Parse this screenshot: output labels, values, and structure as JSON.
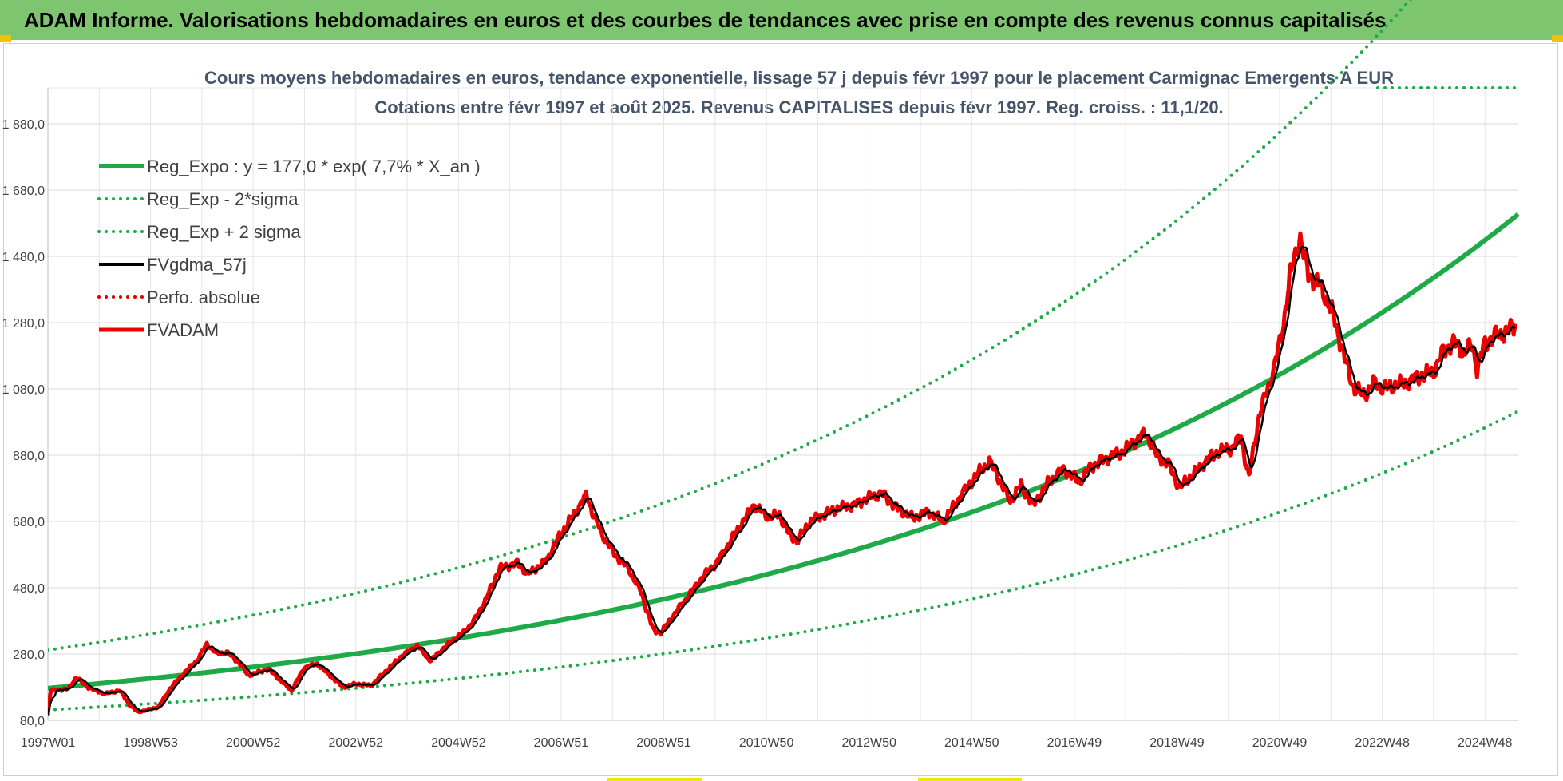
{
  "banner": {
    "title": "ADAM Informe. Valorisations hebdomadaires en euros et des courbes de tendances avec prise en compte des revenus connus capitalisés",
    "color": "#7dc56e"
  },
  "chart_data": {
    "type": "line",
    "title": "Cours moyens hebdomadaires en euros, tendance exponentielle, lissage 57 j depuis févr 1997 pour le placement Carmignac Emergents A EUR",
    "subtitle": "Cotations entre févr 1997 et août 2025. Revenus CAPITALISES depuis févr 1997. Reg. croiss. : 11,1/20.",
    "xlim": [
      1997.0,
      2025.65
    ],
    "ylim": [
      80,
      1960
    ],
    "y_ticks": [
      80,
      280,
      480,
      680,
      880,
      1080,
      1280,
      1480,
      1680,
      1880
    ],
    "y_tick_labels": [
      "80,0",
      "280,0",
      "480,0",
      "680,0",
      "880,0",
      "1 080,0",
      "1 280,0",
      "1 480,0",
      "1 680,0",
      "1 880,0"
    ],
    "x_ticks": [
      {
        "label": "1997W01",
        "x": 1997.0
      },
      {
        "label": "1998W53",
        "x": 1999.0
      },
      {
        "label": "2000W52",
        "x": 2001.0
      },
      {
        "label": "2002W52",
        "x": 2003.0
      },
      {
        "label": "2004W52",
        "x": 2005.0
      },
      {
        "label": "2006W51",
        "x": 2007.0
      },
      {
        "label": "2008W51",
        "x": 2009.0
      },
      {
        "label": "2010W50",
        "x": 2011.0
      },
      {
        "label": "2012W50",
        "x": 2013.0
      },
      {
        "label": "2014W50",
        "x": 2015.0
      },
      {
        "label": "2016W49",
        "x": 2017.0
      },
      {
        "label": "2018W49",
        "x": 2019.0
      },
      {
        "label": "2020W49",
        "x": 2021.0
      },
      {
        "label": "2022W48",
        "x": 2023.0
      },
      {
        "label": "2024W48",
        "x": 2025.0
      }
    ],
    "grid": true,
    "legend_position": "top-left",
    "regression": {
      "a": 177.0,
      "rate": 0.077,
      "sigma_low": 0.63,
      "sigma_high": 1.65
    },
    "series": [
      {
        "name": "Reg_Expo : y = 177,0 * exp( 7,7% *  X_an )",
        "color": "#1faa48",
        "style": "solid",
        "width": 6,
        "kind": "reg"
      },
      {
        "name": "Reg_Exp - 2*sigma",
        "color": "#1faa48",
        "style": "dotted",
        "width": 4,
        "kind": "low"
      },
      {
        "name": "Reg_Exp + 2 sigma",
        "color": "#1faa48",
        "style": "dotted",
        "width": 4,
        "kind": "high"
      },
      {
        "name": "FVgdma_57j",
        "color": "#000000",
        "style": "solid",
        "width": 4,
        "kind": "smooth"
      },
      {
        "name": "Perfo. absolue",
        "color": "#e00000",
        "style": "dotted",
        "width": 3,
        "kind": "perfo"
      },
      {
        "name": "FVADAM",
        "color": "#ee0000",
        "style": "solid",
        "width": 5,
        "kind": "price"
      }
    ],
    "price_points": [
      [
        1997.0,
        95
      ],
      [
        1997.05,
        170
      ],
      [
        1997.4,
        175
      ],
      [
        1997.55,
        210
      ],
      [
        1997.8,
        178
      ],
      [
        1998.1,
        160
      ],
      [
        1998.4,
        170
      ],
      [
        1998.6,
        125
      ],
      [
        1998.75,
        105
      ],
      [
        1998.9,
        110
      ],
      [
        1999.15,
        120
      ],
      [
        1999.4,
        180
      ],
      [
        1999.7,
        230
      ],
      [
        1999.9,
        260
      ],
      [
        2000.1,
        310
      ],
      [
        2000.3,
        280
      ],
      [
        2000.5,
        285
      ],
      [
        2000.75,
        250
      ],
      [
        2000.9,
        215
      ],
      [
        2001.1,
        225
      ],
      [
        2001.3,
        235
      ],
      [
        2001.6,
        190
      ],
      [
        2001.75,
        170
      ],
      [
        2002.0,
        240
      ],
      [
        2002.25,
        250
      ],
      [
        2002.5,
        215
      ],
      [
        2002.75,
        180
      ],
      [
        2003.0,
        190
      ],
      [
        2003.3,
        185
      ],
      [
        2003.6,
        230
      ],
      [
        2003.9,
        275
      ],
      [
        2004.2,
        305
      ],
      [
        2004.45,
        260
      ],
      [
        2004.8,
        310
      ],
      [
        2005.1,
        345
      ],
      [
        2005.3,
        380
      ],
      [
        2005.55,
        450
      ],
      [
        2005.8,
        540
      ],
      [
        2006.15,
        555
      ],
      [
        2006.35,
        520
      ],
      [
        2006.7,
        560
      ],
      [
        2006.95,
        630
      ],
      [
        2007.2,
        690
      ],
      [
        2007.5,
        760
      ],
      [
        2007.6,
        710
      ],
      [
        2007.8,
        640
      ],
      [
        2008.05,
        580
      ],
      [
        2008.3,
        540
      ],
      [
        2008.55,
        470
      ],
      [
        2008.8,
        350
      ],
      [
        2008.95,
        345
      ],
      [
        2009.25,
        410
      ],
      [
        2009.5,
        460
      ],
      [
        2009.8,
        520
      ],
      [
        2010.05,
        560
      ],
      [
        2010.3,
        620
      ],
      [
        2010.55,
        680
      ],
      [
        2010.75,
        730
      ],
      [
        2011.05,
        690
      ],
      [
        2011.25,
        700
      ],
      [
        2011.45,
        640
      ],
      [
        2011.6,
        620
      ],
      [
        2011.85,
        680
      ],
      [
        2012.1,
        700
      ],
      [
        2012.4,
        720
      ],
      [
        2012.7,
        730
      ],
      [
        2012.95,
        750
      ],
      [
        2013.25,
        765
      ],
      [
        2013.55,
        720
      ],
      [
        2013.85,
        690
      ],
      [
        2014.15,
        710
      ],
      [
        2014.45,
        680
      ],
      [
        2014.75,
        750
      ],
      [
        2014.95,
        790
      ],
      [
        2015.1,
        820
      ],
      [
        2015.35,
        860
      ],
      [
        2015.5,
        820
      ],
      [
        2015.75,
        740
      ],
      [
        2015.95,
        790
      ],
      [
        2016.2,
        730
      ],
      [
        2016.5,
        800
      ],
      [
        2016.8,
        840
      ],
      [
        2017.1,
        800
      ],
      [
        2017.35,
        850
      ],
      [
        2017.6,
        870
      ],
      [
        2017.9,
        885
      ],
      [
        2018.15,
        920
      ],
      [
        2018.4,
        945
      ],
      [
        2018.6,
        880
      ],
      [
        2018.85,
        850
      ],
      [
        2019.05,
        780
      ],
      [
        2019.3,
        820
      ],
      [
        2019.55,
        860
      ],
      [
        2019.8,
        890
      ],
      [
        2020.05,
        900
      ],
      [
        2020.25,
        935
      ],
      [
        2020.4,
        810
      ],
      [
        2020.6,
        1000
      ],
      [
        2020.85,
        1120
      ],
      [
        2021.05,
        1250
      ],
      [
        2021.2,
        1420
      ],
      [
        2021.4,
        1540
      ],
      [
        2021.55,
        1430
      ],
      [
        2021.8,
        1390
      ],
      [
        2022.05,
        1300
      ],
      [
        2022.25,
        1180
      ],
      [
        2022.45,
        1080
      ],
      [
        2022.65,
        1060
      ],
      [
        2022.85,
        1100
      ],
      [
        2023.05,
        1080
      ],
      [
        2023.25,
        1090
      ],
      [
        2023.5,
        1100
      ],
      [
        2023.75,
        1120
      ],
      [
        2024.0,
        1130
      ],
      [
        2024.2,
        1200
      ],
      [
        2024.4,
        1220
      ],
      [
        2024.6,
        1190
      ],
      [
        2024.75,
        1215
      ],
      [
        2024.85,
        1140
      ],
      [
        2025.0,
        1220
      ],
      [
        2025.2,
        1240
      ],
      [
        2025.4,
        1250
      ],
      [
        2025.6,
        1275
      ]
    ]
  }
}
